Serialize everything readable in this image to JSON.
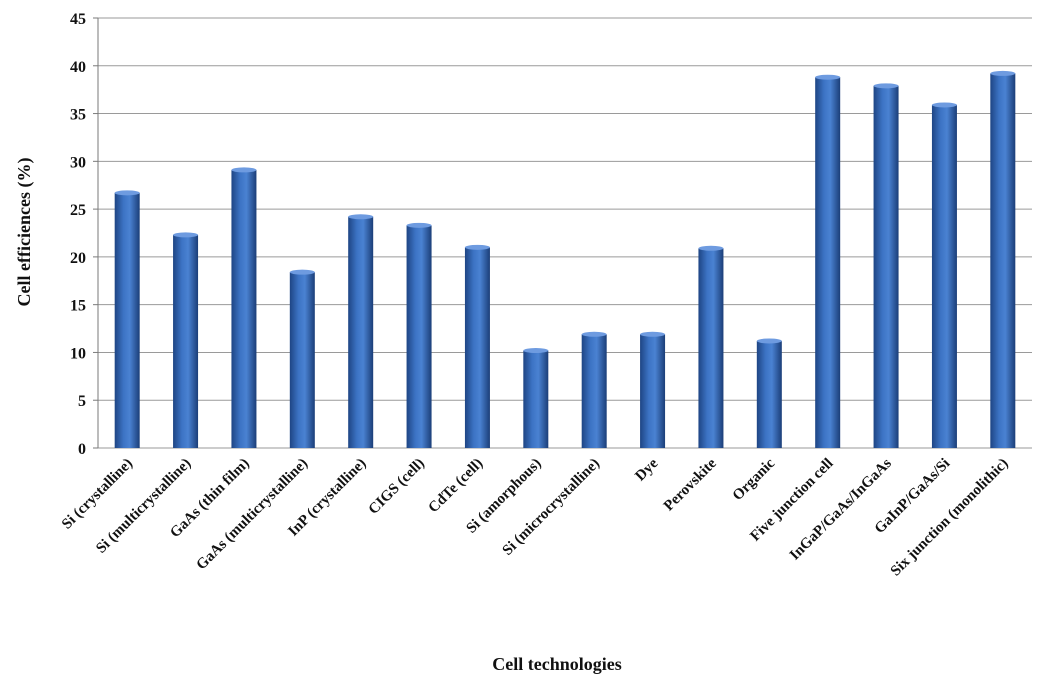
{
  "chart_data": {
    "type": "bar",
    "title": "",
    "xlabel": "Cell technologies",
    "ylabel": "Cell efficiences (%)",
    "ylim": [
      0,
      45
    ],
    "yticks": [
      0,
      5,
      10,
      15,
      20,
      25,
      30,
      35,
      40,
      45
    ],
    "grid": true,
    "bar_color": "#2E5DA8",
    "categories": [
      "Si (crystalline)",
      "Si (multicrystalline)",
      "GaAs (thin film)",
      "GaAs (multicrystalline)",
      "InP (crystalline)",
      "CIGS (cell)",
      "CdTe (cell)",
      "Si (amorphous)",
      "Si (microcrystalline)",
      "Dye",
      "Perovskite",
      "Organic",
      "Five junction cell",
      "InGaP/GaAs/InGaAs",
      "GaInP/GaAs/Si",
      "Six junction (monolithic)"
    ],
    "values": [
      26.7,
      22.3,
      29.1,
      18.4,
      24.2,
      23.3,
      21.0,
      10.2,
      11.9,
      11.9,
      20.9,
      11.2,
      38.8,
      37.9,
      35.9,
      39.2
    ]
  }
}
